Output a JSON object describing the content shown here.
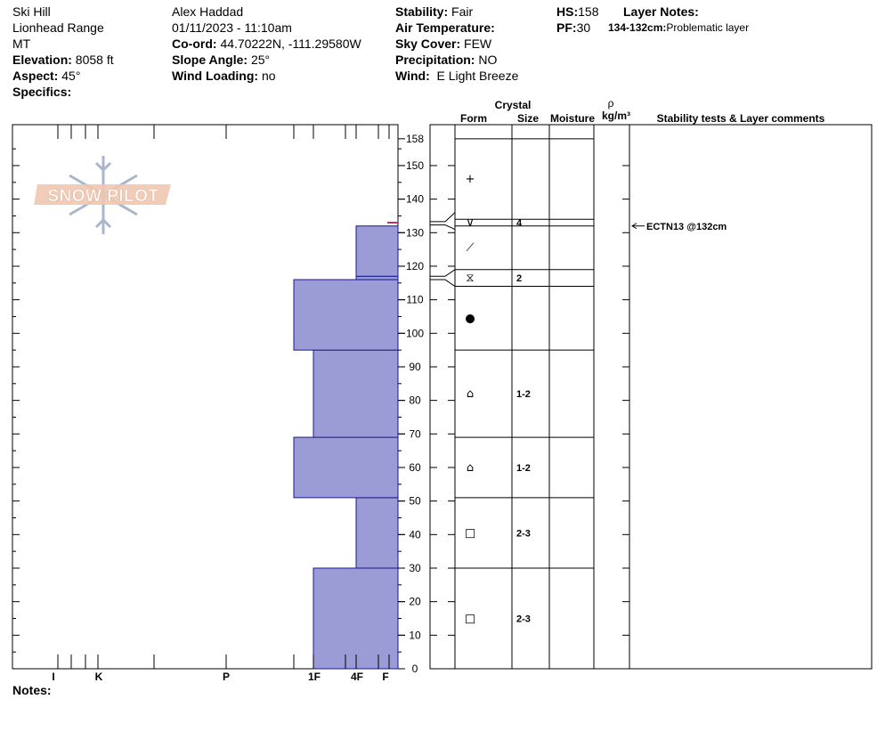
{
  "header": {
    "col1": [
      "Ski Hill",
      "Lionhead Range",
      "MT"
    ],
    "elevation": {
      "label": "Elevation:",
      "value": "8058 ft"
    },
    "aspect": {
      "label": "Aspect:",
      "value": "45°"
    },
    "specifics": {
      "label": "Specifics:",
      "value": ""
    },
    "observer": "Alex Haddad",
    "datetime": "01/11/2023 - 11:10am",
    "coord": {
      "label": "Co-ord:",
      "value": "44.70222N, -111.29580W"
    },
    "slope": {
      "label": "Slope Angle:",
      "value": "25°"
    },
    "wind_loading": {
      "label": "Wind Loading:",
      "value": "no"
    },
    "stability": {
      "label": "Stability:",
      "value": "Fair"
    },
    "air_temp": {
      "label": "Air Temperature:",
      "value": ""
    },
    "sky": {
      "label": "Sky Cover:",
      "value": "FEW"
    },
    "precip": {
      "label": "Precipitation:",
      "value": "NO"
    },
    "wind": {
      "label": "Wind:",
      "value": "E Light Breeze"
    },
    "hs": {
      "label": "HS:",
      "value": "158"
    },
    "pf": {
      "label": "PF:",
      "value": "30"
    },
    "layer_notes": {
      "label": "Layer Notes:",
      "range": "134-132cm:",
      "text": "Problematic layer"
    }
  },
  "notes": {
    "label": "Notes:",
    "value": ""
  },
  "logo_text": "SNOW PILOT",
  "table_headers": {
    "crystal": "Crystal",
    "form": "Form",
    "size": "Size",
    "moisture": "Moisture",
    "rho": "ρ",
    "density_unit": "kg/m³",
    "stability": "Stability tests & Layer comments"
  },
  "colors": {
    "layer_fill": "#9b9bd6",
    "layer_stroke": "#1a1a8c",
    "weak_layer": "#c0306a"
  },
  "chart_data": {
    "type": "snow-profile",
    "y_axis": {
      "min": 0,
      "max": 158,
      "ticks": [
        0,
        10,
        20,
        30,
        40,
        50,
        60,
        70,
        80,
        90,
        100,
        110,
        120,
        130,
        140,
        150,
        158
      ]
    },
    "hardness_scale": [
      "I",
      "K",
      "P",
      "1F",
      "4F",
      "F"
    ],
    "hardness_layers": [
      {
        "bottom": 0,
        "top": 30,
        "hardness": "1F"
      },
      {
        "bottom": 30,
        "top": 51,
        "hardness": "4F"
      },
      {
        "bottom": 51,
        "top": 69,
        "hardness": "1F+"
      },
      {
        "bottom": 69,
        "top": 95,
        "hardness": "1F"
      },
      {
        "bottom": 95,
        "top": 116,
        "hardness": "1F+"
      },
      {
        "bottom": 116,
        "top": 117,
        "hardness": "4F"
      },
      {
        "bottom": 117,
        "top": 132,
        "hardness": "4F"
      },
      {
        "bottom": 132,
        "top": 134,
        "hardness": "F"
      },
      {
        "bottom": 134,
        "top": 158,
        "hardness": "F"
      }
    ],
    "crystal_layers": [
      {
        "bottom": 134,
        "top": 158,
        "form": "+",
        "size": ""
      },
      {
        "bottom": 132,
        "top": 134,
        "form": "∨",
        "size": "4"
      },
      {
        "bottom": 119,
        "top": 132,
        "form": "⟋",
        "size": ""
      },
      {
        "bottom": 114,
        "top": 119,
        "form": "⧖",
        "size": "2"
      },
      {
        "bottom": 95,
        "top": 114,
        "form": "●",
        "size": ""
      },
      {
        "bottom": 69,
        "top": 95,
        "form": "⌂",
        "size": "1-2"
      },
      {
        "bottom": 51,
        "top": 69,
        "form": "⌂",
        "size": "1-2"
      },
      {
        "bottom": 30,
        "top": 51,
        "form": "□",
        "size": "2-3"
      },
      {
        "bottom": 0,
        "top": 30,
        "form": "□",
        "size": "2-3"
      }
    ],
    "stability_tests": [
      {
        "depth": 132,
        "label": "ECTN13 @132cm"
      }
    ]
  }
}
